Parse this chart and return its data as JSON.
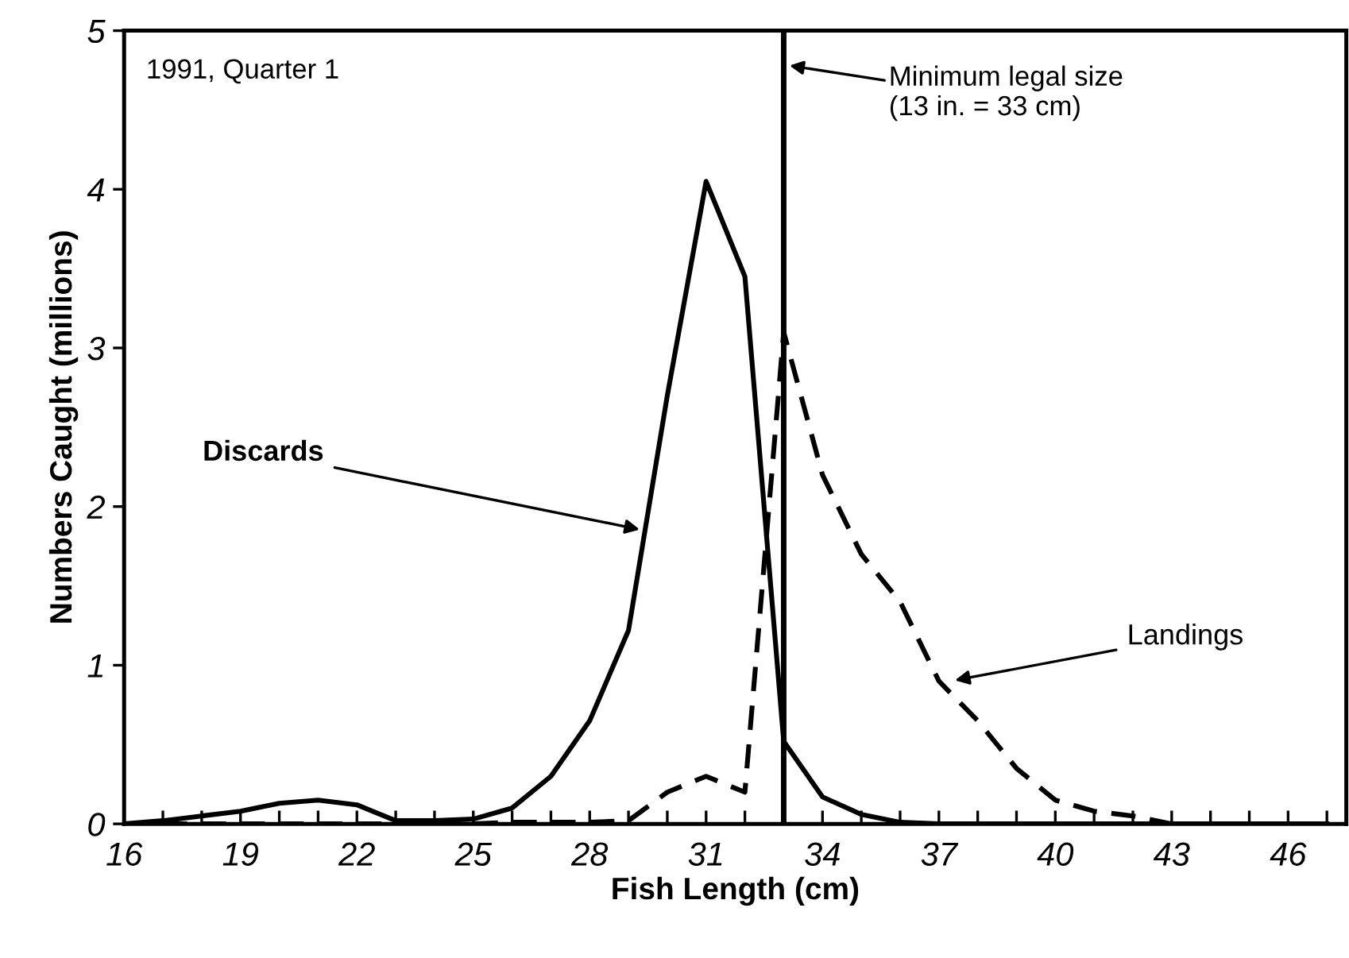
{
  "chart_data": {
    "type": "line",
    "xlabel": "Fish Length (cm)",
    "ylabel": "Numbers Caught (millions)",
    "x": [
      16,
      17,
      18,
      19,
      20,
      21,
      22,
      23,
      24,
      25,
      26,
      27,
      28,
      29,
      30,
      31,
      32,
      33,
      34,
      35,
      36,
      37,
      38,
      39,
      40,
      41,
      42,
      43,
      44,
      45,
      46,
      47
    ],
    "series": [
      {
        "color": "#000000",
        "line_style": "solid",
        "values": [
          0,
          0.02,
          0.05,
          0.08,
          0.13,
          0.15,
          0.12,
          0.02,
          0.02,
          0.03,
          0.1,
          0.3,
          0.65,
          1.22,
          2.7,
          4.05,
          3.45,
          0.52,
          0.17,
          0.06,
          0.01,
          0,
          0,
          0,
          0,
          0,
          0,
          0,
          0,
          0,
          0,
          0
        ]
      },
      {
        "color": "#000000",
        "line_style": "dashed",
        "values": [
          0,
          0,
          0,
          0,
          0,
          0,
          0,
          0,
          0,
          0,
          0.01,
          0.01,
          0.01,
          0.02,
          0.2,
          0.3,
          0.2,
          3.1,
          2.2,
          1.7,
          1.4,
          0.9,
          0.65,
          0.35,
          0.15,
          0.08,
          0.05,
          0,
          0,
          0,
          0,
          0
        ]
      }
    ],
    "ref_lines": [
      {
        "axis": "x",
        "value": 33,
        "label": "Minimum legal size\n(13 in. = 33 cm)",
        "color": "#000000",
        "line_style": "solid"
      }
    ],
    "annotations": [
      "1991, Quarter 1",
      {
        "text": "Discards",
        "x": 29.4,
        "y": 1.85
      },
      {
        "text": "Landings",
        "x": 37.3,
        "y": 0.9
      }
    ],
    "xlim": [
      16,
      47.5
    ],
    "xticks": [
      16,
      {
        "value": 17,
        "label": null
      },
      {
        "value": 18,
        "label": null
      },
      19,
      {
        "value": 20,
        "label": null
      },
      {
        "value": 21,
        "label": null
      },
      22,
      {
        "value": 23,
        "label": null
      },
      {
        "value": 24,
        "label": null
      },
      25,
      {
        "value": 26,
        "label": null
      },
      {
        "value": 27,
        "label": null
      },
      28,
      {
        "value": 29,
        "label": null
      },
      {
        "value": 30,
        "label": null
      },
      31,
      {
        "value": 32,
        "label": null
      },
      {
        "value": 33,
        "label": null
      },
      34,
      {
        "value": 35,
        "label": null
      },
      {
        "value": 36,
        "label": null
      },
      37,
      {
        "value": 38,
        "label": null
      },
      {
        "value": 39,
        "label": null
      },
      40,
      {
        "value": 41,
        "label": null
      },
      {
        "value": 42,
        "label": null
      },
      43,
      {
        "value": 44,
        "label": null
      },
      {
        "value": 45,
        "label": null
      },
      46,
      {
        "value": 47,
        "label": null
      }
    ],
    "ylim": [
      0,
      5
    ],
    "yticks": [
      0,
      1,
      2,
      3,
      4,
      5
    ],
    "grid": false,
    "legend": false,
    "marker": "none"
  }
}
